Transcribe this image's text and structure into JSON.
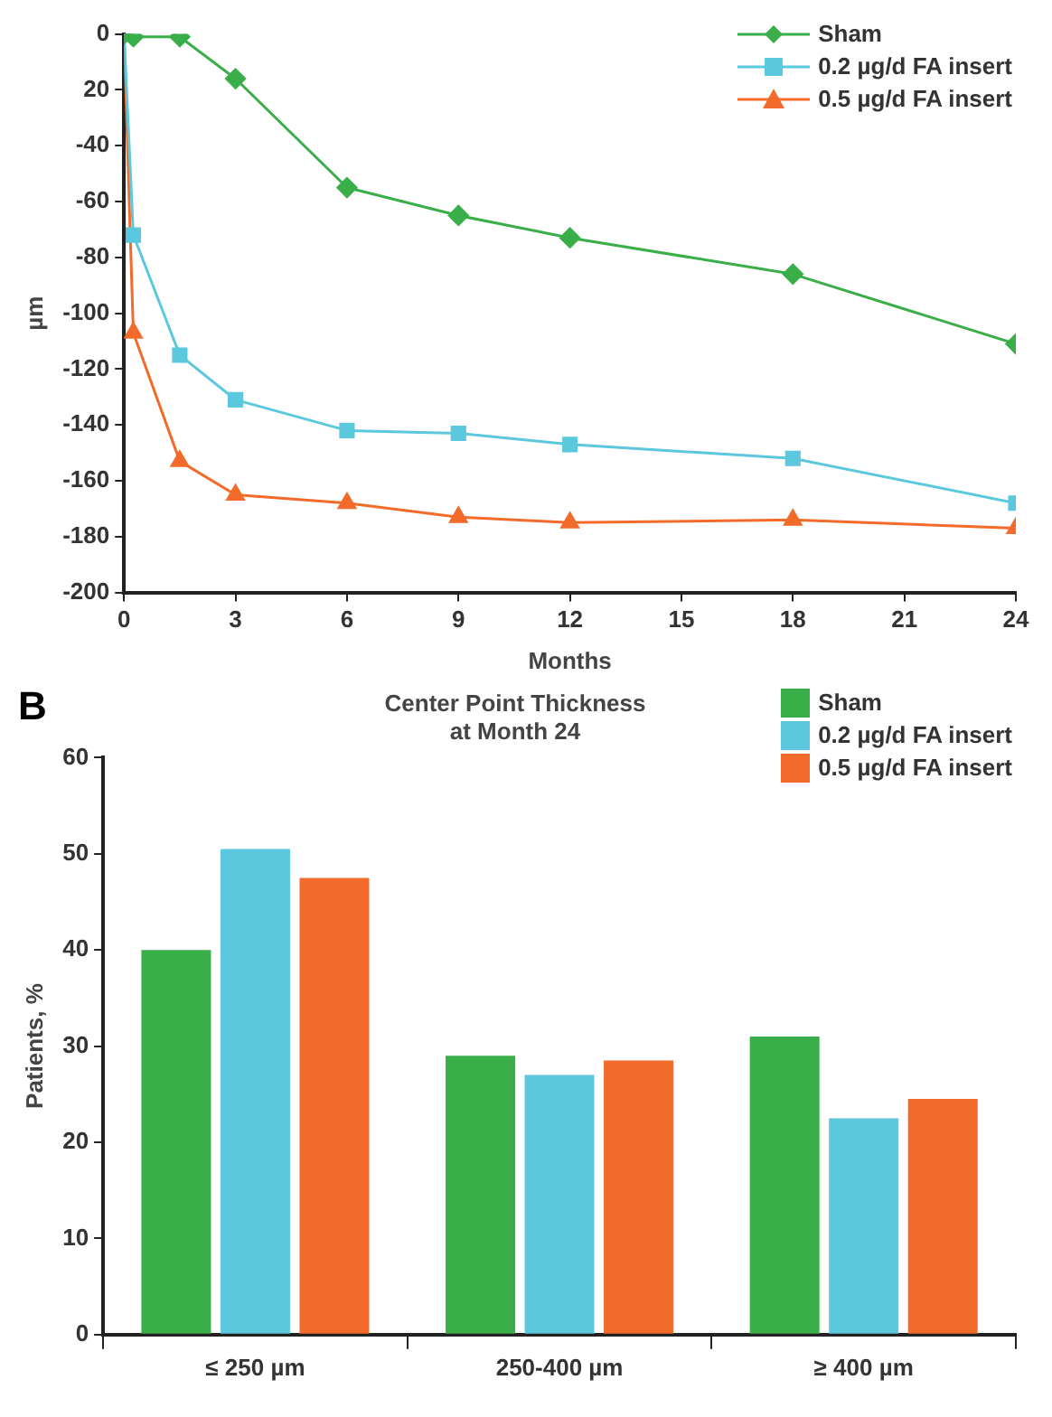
{
  "chart_data": [
    {
      "type": "line",
      "xlabel": "Months",
      "ylabel": "µm",
      "xlim": [
        0,
        24
      ],
      "xticks": [
        0,
        3,
        6,
        9,
        12,
        15,
        18,
        21,
        24
      ],
      "ylim": [
        -200,
        0
      ],
      "yticks": [
        {
          "value": -200,
          "label": "-200"
        },
        {
          "value": -180,
          "label": "-180"
        },
        {
          "value": -160,
          "label": "-160"
        },
        {
          "value": -140,
          "label": "-140"
        },
        {
          "value": -120,
          "label": "-120"
        },
        {
          "value": -100,
          "label": "-100"
        },
        {
          "value": -80,
          "label": "-80"
        },
        {
          "value": -60,
          "label": "-60"
        },
        {
          "value": -40,
          "label": "-40"
        },
        {
          "value": -20,
          "label": "20"
        },
        {
          "value": 0,
          "label": "0"
        }
      ],
      "grid": false,
      "legend": "top right",
      "line_style": "solid",
      "series": [
        {
          "name": "Sham",
          "color": "#3aae48",
          "marker": "diamond",
          "x": [
            0,
            0.25,
            1.5,
            3,
            6,
            9,
            12,
            18,
            24
          ],
          "values": [
            0,
            -1,
            -1,
            -16,
            -55,
            -65,
            -73,
            -86,
            -111
          ]
        },
        {
          "name": "0.2 µg/d FA insert",
          "color": "#5bc8dd",
          "marker": "square",
          "x": [
            0,
            0.25,
            1.5,
            3,
            6,
            9,
            12,
            18,
            24
          ],
          "values": [
            0,
            -72,
            -115,
            -131,
            -142,
            -143,
            -147,
            -152,
            -168
          ]
        },
        {
          "name": "0.5 µg/d FA insert",
          "color": "#f26b2a",
          "marker": "triangle",
          "x": [
            0,
            0.25,
            1.5,
            3,
            6,
            9,
            12,
            18,
            24
          ],
          "values": [
            0,
            -107,
            -153,
            -165,
            -168,
            -173,
            -175,
            -174,
            -177
          ]
        }
      ]
    },
    {
      "type": "bar",
      "title": "Center Point Thickness\nat Month 24",
      "ylabel": "Patients, %",
      "annotations": [
        "B"
      ],
      "categories": [
        "≤ 250 µm",
        "250-400 µm",
        "≥ 400 µm"
      ],
      "ylim": [
        0,
        60
      ],
      "yticks": [
        0,
        10,
        20,
        30,
        40,
        50,
        60
      ],
      "grid": false,
      "legend": "top right",
      "series": [
        {
          "name": "Sham",
          "color": "#3aae48",
          "values": [
            40,
            29,
            31
          ]
        },
        {
          "name": "0.2 µg/d FA insert",
          "color": "#5bc8dd",
          "values": [
            50.5,
            27,
            22.5
          ]
        },
        {
          "name": "0.5 µg/d FA insert",
          "color": "#f26b2a",
          "values": [
            47.5,
            28.5,
            24.5
          ]
        }
      ]
    }
  ]
}
